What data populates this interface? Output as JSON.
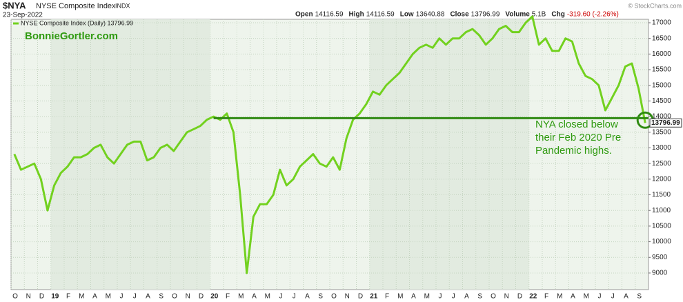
{
  "header": {
    "symbol": "$NYA",
    "name": "NYSE Composite Index",
    "exchange": "INDX",
    "date": "23-Sep-2022",
    "quote": [
      {
        "label": "Open",
        "value": "14116.59"
      },
      {
        "label": "High",
        "value": "14116.59"
      },
      {
        "label": "Low",
        "value": "13640.88"
      },
      {
        "label": "Close",
        "value": "13796.99"
      },
      {
        "label": "Volume",
        "value": "5.1B"
      },
      {
        "label": "Chg",
        "value": "-319.60 (-2.26%)"
      }
    ],
    "credit": "© StockCharts.com"
  },
  "chart_data": {
    "type": "line",
    "legend": "NYSE Composite Index (Daily) 13796.99",
    "watermark": "BonnieGortler.com",
    "annotation": [
      "NYA closed below",
      "their Feb 2020 Pre",
      "Pandemic highs."
    ],
    "last_label": "13796.99",
    "color": "#72d11f",
    "reference_line": 13950,
    "reference_color": "#2f8a12",
    "categories": [
      "O",
      null,
      "N",
      null,
      "D",
      null,
      "19",
      null,
      "F",
      null,
      "M",
      null,
      "A",
      null,
      "M",
      null,
      "J",
      null,
      "J",
      null,
      "A",
      null,
      "S",
      null,
      "O",
      null,
      "N",
      null,
      "D",
      null,
      "20",
      null,
      "F",
      null,
      "M",
      null,
      "A",
      null,
      "M",
      null,
      "J",
      null,
      "J",
      null,
      "A",
      null,
      "S",
      null,
      "O",
      null,
      "N",
      null,
      "D",
      null,
      "21",
      null,
      "F",
      null,
      "M",
      null,
      "A",
      null,
      "M",
      null,
      "J",
      null,
      "J",
      null,
      "A",
      null,
      "S",
      null,
      "O",
      null,
      "N",
      null,
      "D",
      null,
      "22",
      null,
      "F",
      null,
      "M",
      null,
      "A",
      null,
      "M",
      null,
      "J",
      null,
      "J",
      null,
      "A",
      null,
      "S",
      null
    ],
    "values": [
      12800,
      12300,
      12400,
      12500,
      12000,
      11000,
      11800,
      12200,
      12400,
      12700,
      12700,
      12800,
      13000,
      13100,
      12700,
      12500,
      12800,
      13100,
      13200,
      13200,
      12600,
      12700,
      13000,
      13100,
      12900,
      13200,
      13500,
      13600,
      13700,
      13900,
      14000,
      13900,
      14100,
      13500,
      11500,
      9000,
      10800,
      11200,
      11200,
      11500,
      12300,
      11800,
      12000,
      12400,
      12600,
      12800,
      12500,
      12400,
      12700,
      12300,
      13300,
      13900,
      14100,
      14400,
      14800,
      14700,
      15000,
      15200,
      15400,
      15700,
      16000,
      16200,
      16300,
      16200,
      16500,
      16300,
      16500,
      16500,
      16700,
      16800,
      16600,
      16300,
      16500,
      16800,
      16900,
      16700,
      16700,
      17000,
      17200,
      16300,
      16500,
      16100,
      16100,
      16500,
      16400,
      15700,
      15300,
      15200,
      15000,
      14200,
      14600,
      15000,
      15600,
      15700,
      14900,
      13796.99
    ],
    "ylim": [
      8470,
      17110
    ],
    "yticks": [
      9000,
      9500,
      10000,
      10500,
      11000,
      11500,
      12000,
      12500,
      13000,
      13500,
      14000,
      14500,
      15000,
      15500,
      16000,
      16500,
      17000
    ],
    "grid": true
  }
}
